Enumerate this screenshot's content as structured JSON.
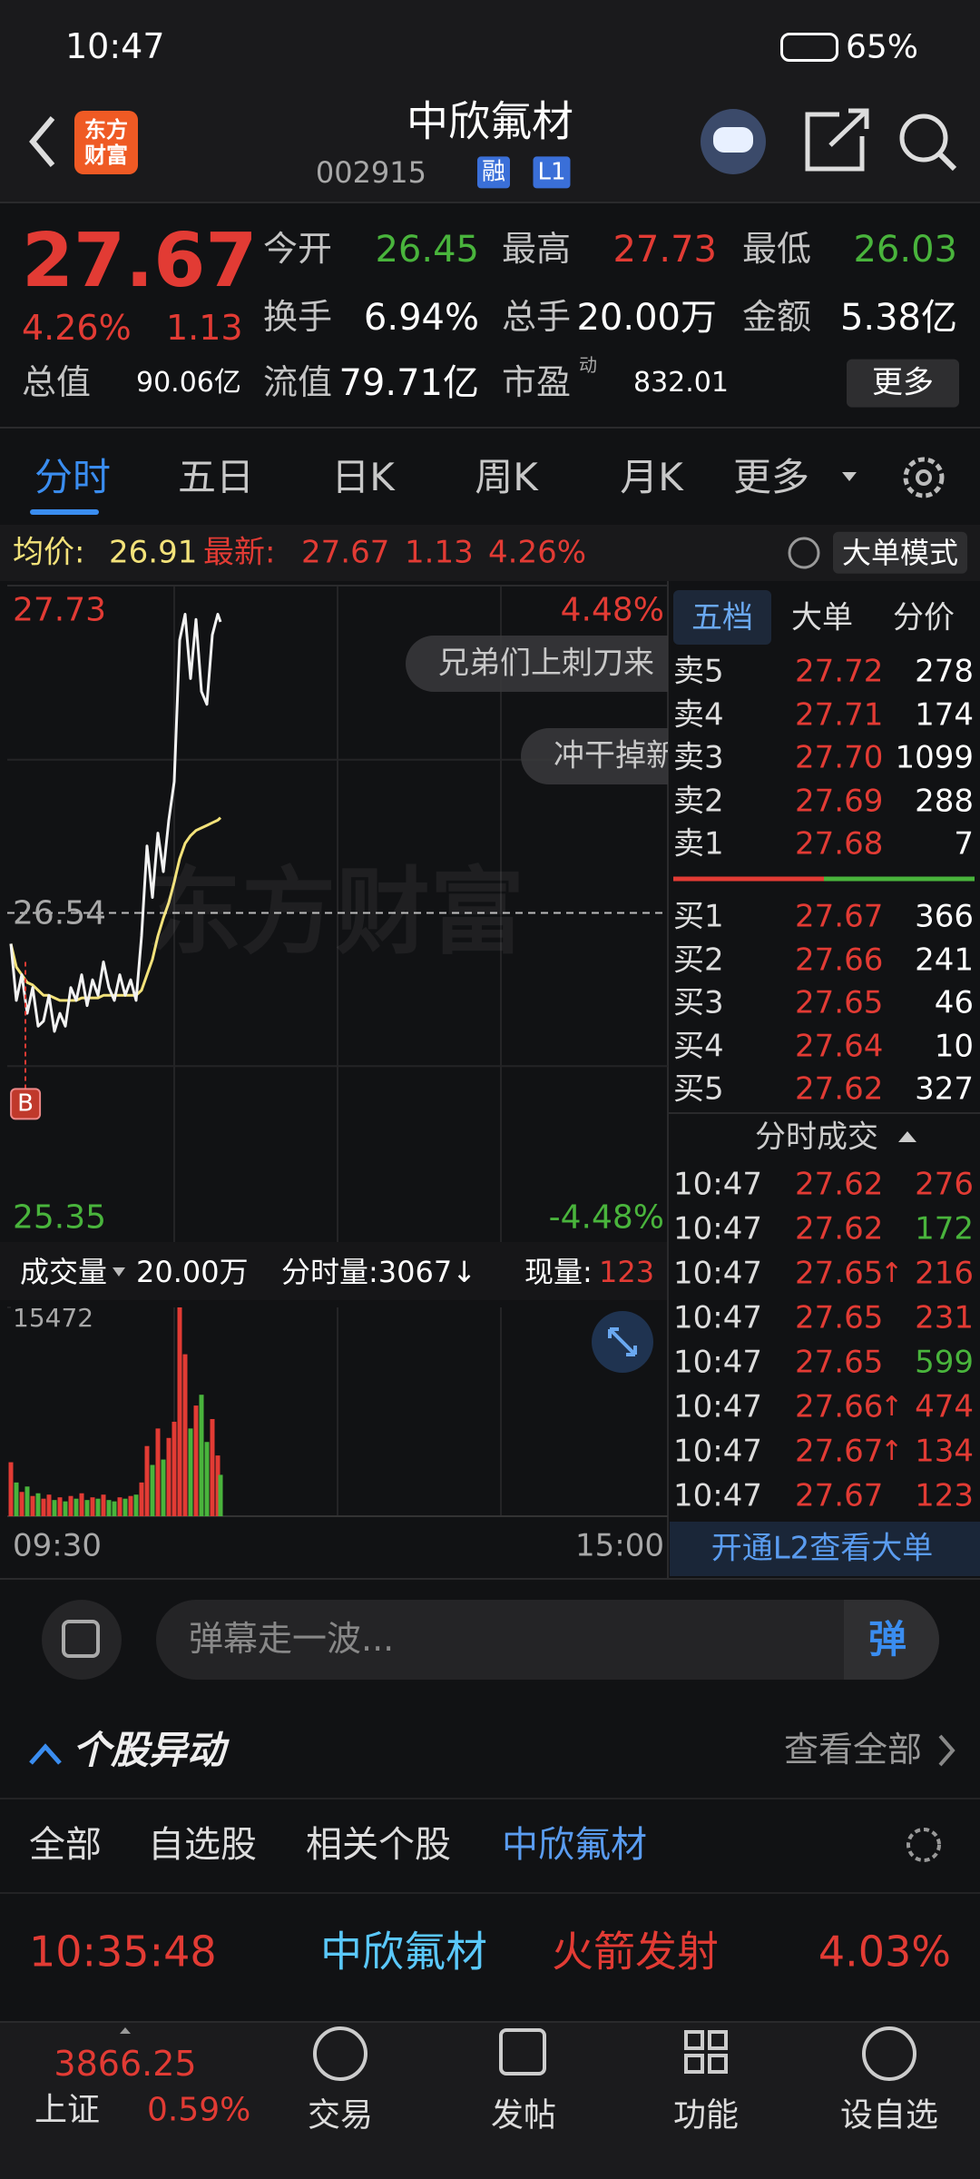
{
  "status_bar": {
    "time": "10:47",
    "battery": "65%"
  },
  "header": {
    "logo": "东方财富",
    "title": "中欣氟材",
    "code": "002915",
    "badges": [
      "融",
      "L1"
    ]
  },
  "quote": {
    "price": "27.67",
    "change_pct": "4.26%",
    "change": "1.13",
    "stats": [
      {
        "label": "今开",
        "value": "26.45"
      },
      {
        "label": "最高",
        "value": "27.73"
      },
      {
        "label": "最低",
        "value": "26.03"
      },
      {
        "label": "换手",
        "value": "6.94%"
      },
      {
        "label": "总手",
        "value": "20.00万"
      },
      {
        "label": "金额",
        "value": "5.38亿"
      },
      {
        "label": "总值",
        "value": "90.06亿"
      },
      {
        "label": "流值",
        "value": "79.71亿"
      },
      {
        "label": "市盈",
        "value": "832.01"
      }
    ],
    "pe_note": "动",
    "more": "更多"
  },
  "tabs": [
    "分时",
    "五日",
    "日K",
    "周K",
    "月K",
    "更多"
  ],
  "info_line": {
    "avg_label": "均价:",
    "avg": "26.91",
    "latest_label": "最新:",
    "latest": "27.67",
    "change": "1.13",
    "change_pct": "4.26%",
    "mode": "大单模式"
  },
  "intraday": {
    "ylim": [
      25.35,
      27.73
    ],
    "yticks": [
      27.73,
      26.54,
      25.35
    ],
    "pct_labels": [
      "4.48%",
      "-4.48%"
    ],
    "xticks": [
      "09:30",
      "15:00"
    ],
    "times": [
      "09:30",
      "09:32",
      "09:34",
      "09:36",
      "09:38",
      "09:40",
      "09:42",
      "09:44",
      "09:46",
      "09:48",
      "09:50",
      "09:52",
      "09:54",
      "09:56",
      "09:58",
      "10:00",
      "10:02",
      "10:04",
      "10:06",
      "10:08",
      "10:10",
      "10:12",
      "10:14",
      "10:16",
      "10:18",
      "10:20",
      "10:22",
      "10:24",
      "10:26",
      "10:28",
      "10:30",
      "10:32",
      "10:34",
      "10:36",
      "10:38",
      "10:40",
      "10:42",
      "10:44",
      "10:46",
      "10:47"
    ],
    "prices": [
      26.42,
      26.2,
      26.3,
      26.15,
      26.25,
      26.1,
      26.12,
      26.22,
      26.08,
      26.15,
      26.1,
      26.25,
      26.2,
      26.3,
      26.18,
      26.28,
      26.22,
      26.35,
      26.25,
      26.2,
      26.3,
      26.22,
      26.28,
      26.2,
      26.45,
      26.8,
      26.6,
      26.85,
      26.7,
      26.9,
      27.05,
      27.6,
      27.7,
      27.45,
      27.68,
      27.4,
      27.35,
      27.62,
      27.7,
      27.67
    ],
    "avg": [
      26.42,
      26.33,
      26.3,
      26.27,
      26.26,
      26.24,
      26.22,
      26.22,
      26.21,
      26.2,
      26.2,
      26.2,
      26.2,
      26.21,
      26.21,
      26.21,
      26.21,
      26.22,
      26.22,
      26.22,
      26.22,
      26.22,
      26.22,
      26.22,
      26.24,
      26.3,
      26.36,
      26.45,
      26.52,
      26.58,
      26.66,
      26.75,
      26.81,
      26.84,
      26.86,
      26.87,
      26.88,
      26.89,
      26.9,
      26.91
    ],
    "price_color": "#f2f2f2",
    "avg_color": "#f3e27a",
    "marker": "B",
    "watermark": "东方财富",
    "danmaku": [
      "兄弟们上刺刀来",
      "冲干掉新"
    ]
  },
  "volume": {
    "label": "成交量",
    "total": "20.00万",
    "tick_label": "分时量:3067↓",
    "now_label": "现量:",
    "now": "123",
    "ylim": [
      0,
      15472
    ],
    "yticks": [
      15472
    ],
    "values": [
      4000,
      2500,
      1800,
      2200,
      1500,
      1700,
      1300,
      1600,
      1200,
      1400,
      1100,
      1500,
      1300,
      1700,
      1200,
      1400,
      1300,
      1600,
      1200,
      1100,
      1400,
      1300,
      1500,
      1600,
      2500,
      5200,
      3800,
      6500,
      4200,
      5800,
      7000,
      15472,
      12000,
      6500,
      8200,
      9000,
      5500,
      7200,
      4500,
      3067
    ],
    "up_color": "#e23b34",
    "down_color": "#49b43c"
  },
  "order_book": {
    "tabs": [
      "五档",
      "大单",
      "分价"
    ],
    "asks": [
      {
        "label": "卖5",
        "price": "27.72",
        "volume": "278"
      },
      {
        "label": "卖4",
        "price": "27.71",
        "volume": "174"
      },
      {
        "label": "卖3",
        "price": "27.70",
        "volume": "1099"
      },
      {
        "label": "卖2",
        "price": "27.69",
        "volume": "288"
      },
      {
        "label": "卖1",
        "price": "27.68",
        "volume": "7"
      }
    ],
    "bids": [
      {
        "label": "买1",
        "price": "27.67",
        "volume": "366"
      },
      {
        "label": "买2",
        "price": "27.66",
        "volume": "241"
      },
      {
        "label": "买3",
        "price": "27.65",
        "volume": "46"
      },
      {
        "label": "买4",
        "price": "27.64",
        "volume": "10"
      },
      {
        "label": "买5",
        "price": "27.62",
        "volume": "327"
      }
    ]
  },
  "trades": {
    "title": "分时成交",
    "rows": [
      {
        "time": "10:47",
        "price": "27.62",
        "volume": "276",
        "color": "#e23b34"
      },
      {
        "time": "10:47",
        "price": "27.62",
        "volume": "172",
        "color": "#49b43c"
      },
      {
        "time": "10:47",
        "price": "27.65",
        "flag": "↑",
        "volume": "216",
        "color": "#e23b34"
      },
      {
        "time": "10:47",
        "price": "27.65",
        "volume": "231",
        "color": "#e23b34"
      },
      {
        "time": "10:47",
        "price": "27.65",
        "volume": "599",
        "color": "#49b43c"
      },
      {
        "time": "10:47",
        "price": "27.66",
        "flag": "↑",
        "volume": "474",
        "color": "#e23b34"
      },
      {
        "time": "10:47",
        "price": "27.67",
        "flag": "↑",
        "volume": "134",
        "color": "#e23b34"
      },
      {
        "time": "10:47",
        "price": "27.67",
        "volume": "123",
        "color": "#e23b34"
      }
    ],
    "l2": "开通L2查看大单"
  },
  "danmu": {
    "placeholder": "弹幕走一波...",
    "button": "弹"
  },
  "movement": {
    "title": "个股异动",
    "view_all": "查看全部",
    "filters": [
      "全部",
      "自选股",
      "相关个股",
      "中欣氟材"
    ],
    "event": {
      "time": "10:35:48",
      "stock": "中欣氟材",
      "type": "火箭发射",
      "pct": "4.03%"
    }
  },
  "bottom_nav": {
    "index_value": "3866.25",
    "index_name": "上证",
    "index_pct": "0.59%",
    "items": [
      "交易",
      "发帖",
      "功能",
      "设自选"
    ]
  }
}
